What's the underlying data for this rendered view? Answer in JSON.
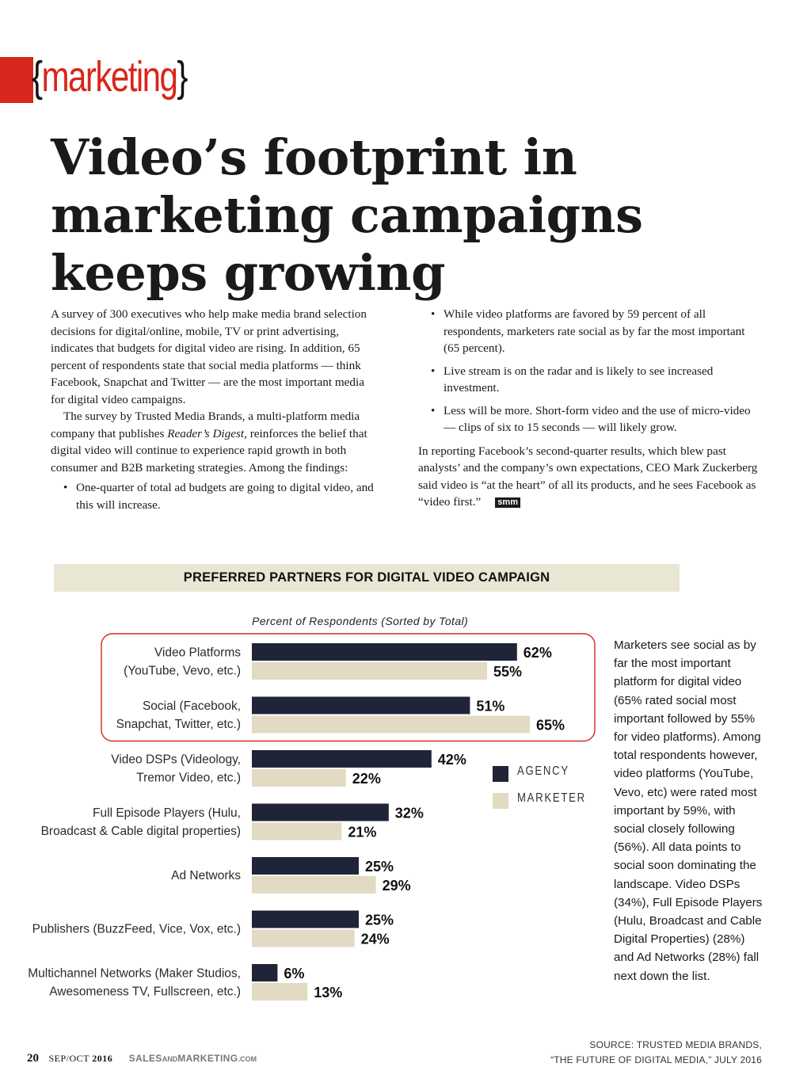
{
  "section": {
    "label": "marketing",
    "bracket_open": "{",
    "bracket_close": "}"
  },
  "article": {
    "headline": "Video’s footprint in marketing campaigns keeps growing",
    "left_column": {
      "para1": "A survey of 300 executives who help make media brand selection decisions for digital/online, mobile, TV or print advertising, indicates that budgets for digital video are rising. In addition, 65 percent of respondents state that social media platforms — think Facebook, Snapchat and Twitter — are the most important media for digital video campaigns.",
      "para2_before": "The survey by Trusted Media Brands, a multi-platform media company that publishes ",
      "para2_italic": "Reader’s Digest,",
      "para2_after": " reinforces the belief that digital video will continue to experience rapid growth in both consumer and B2B marketing strategies. Among the findings:",
      "bullets": [
        "One-quarter of total ad budgets are going to digital video, and this will increase."
      ]
    },
    "right_column": {
      "bullets": [
        "While video platforms are favored by 59 percent of all respondents, marketers rate social as by far the most important (65 percent).",
        "Live stream is on the radar and is likely to see increased investment.",
        "Less will be more. Short-form video and the use of micro-video — clips of six to 15 seconds — will likely grow."
      ],
      "closing": "In reporting Facebook’s second-quarter results, which blew past analysts’ and the company’s own expectations, CEO Mark Zuckerberg said video is “at the heart” of all its products, and he sees Facebook as “video first.”",
      "end_mark": "smm"
    }
  },
  "chart_data": {
    "type": "bar",
    "orientation": "horizontal",
    "title": "PREFERRED PARTNERS FOR DIGITAL VIDEO CAMPAIGN",
    "subtitle": "Percent of Respondents (Sorted by Total)",
    "xlabel": "",
    "ylabel": "",
    "categories": [
      [
        "Video Platforms",
        "(YouTube, Vevo, etc.)"
      ],
      [
        "Social (Facebook,",
        "Snapchat, Twitter, etc.)"
      ],
      [
        "Video DSPs  (Videology,",
        "Tremor Video, etc.)"
      ],
      [
        "Full Episode Players (Hulu,",
        "Broadcast & Cable digital properties)"
      ],
      [
        "Ad Networks"
      ],
      [
        "Publishers (BuzzFeed, Vice, Vox, etc.)"
      ],
      [
        "Multichannel Networks (Maker Studios,",
        "Awesomeness TV, Fullscreen, etc.)"
      ]
    ],
    "series": [
      {
        "name": "AGENCY",
        "color": "#1f2438",
        "values": [
          62,
          51,
          42,
          32,
          25,
          25,
          6
        ],
        "labels": [
          "62%",
          "51%",
          "42%",
          "32%",
          "25%",
          "25%",
          "6%"
        ]
      },
      {
        "name": "MARKETER",
        "color": "#e2dac2",
        "values": [
          55,
          65,
          22,
          21,
          29,
          24,
          13
        ],
        "labels": [
          "55%",
          "65%",
          "22%",
          "21%",
          "29%",
          "24%",
          "13%"
        ]
      }
    ],
    "xlim": [
      0,
      65
    ],
    "grid": false,
    "legend": "right",
    "highlight_groups": [
      0,
      1
    ],
    "highlight_color": "#d9261c"
  },
  "sidebar": {
    "text": "Marketers see social as by far the most important platform for digital video (65% rated social most important followed by 55% for video platforms). Among total respondents however, video platforms (YouTube, Vevo, etc) were rated most important by 59%, with social closely following (56%). All data points to social soon dominating the landscape. Video DSPs (34%), Full Episode Players (Hulu, Broadcast and Cable Digital Properties) (28%) and Ad Networks (28%) fall next down the list."
  },
  "source": {
    "line1": "SOURCE: TRUSTED MEDIA BRANDS,",
    "line2": "“THE FUTURE OF DIGITAL MEDIA,” JULY 2016"
  },
  "footer": {
    "page_number": "20",
    "issue_month": "SEP/OCT",
    "issue_year": "2016",
    "pub_part1": "SALES",
    "pub_part2": "AND",
    "pub_part3": "MARKETING",
    "pub_part4": ".COM"
  },
  "colors": {
    "accent_red": "#d9261c",
    "agency_navy": "#1f2438",
    "marketer_beige": "#e2dac2",
    "banner_bg": "#e9e6d4"
  }
}
